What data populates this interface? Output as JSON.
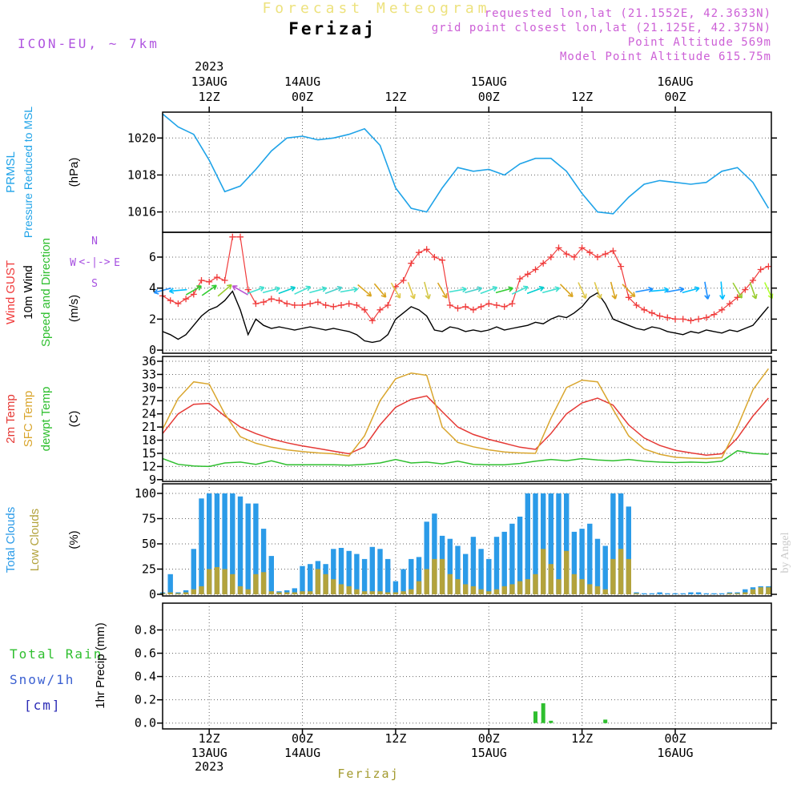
{
  "header": {
    "title": "Forecast Meteogram",
    "title_color": "#EDE27E",
    "station": "Ferizaj",
    "station_color": "#000000",
    "model": "ICON-EU, ~ 7km",
    "model_color": "#B055E0",
    "meta_color": "#CC5FD6",
    "meta": [
      "requested lon,lat (21.1552E, 42.3633N)",
      "grid point closest lon,lat (21.125E, 42.375N)",
      "Point Altitude 569m",
      "Model Point Altitude 615.75m"
    ]
  },
  "footer": {
    "station": "Ferizaj",
    "color": "#A39A2E"
  },
  "watermark": {
    "text": "by Angel",
    "color": "#C9C9C9"
  },
  "chart_data": {
    "type": "meteogram",
    "x_axis": "hours from 13AUG 06Z, 1h grid, 78h span",
    "time_axis": {
      "year": "2023",
      "ticks": [
        {
          "h": 6,
          "date": "13AUG",
          "time": "12Z",
          "year_below": true
        },
        {
          "h": 18,
          "date": "14AUG",
          "time": "00Z"
        },
        {
          "h": 30,
          "time": "12Z"
        },
        {
          "h": 42,
          "date": "15AUG",
          "time": "00Z"
        },
        {
          "h": 54,
          "time": "12Z"
        },
        {
          "h": 66,
          "date": "16AUG",
          "time": "00Z"
        }
      ]
    },
    "panels": [
      {
        "id": "pressure",
        "ylim": [
          1014.9,
          1021.4
        ],
        "yticks": [
          [
            1016,
            "1016"
          ],
          [
            1018,
            "1018"
          ],
          [
            1020,
            "1020"
          ]
        ],
        "left_labels": [
          {
            "text": "PRMSL",
            "color": "#1FA3E8"
          },
          {
            "text": "Pressure Reduced to MSL",
            "color": "#1FA3E8"
          },
          {
            "text": "(hPa)",
            "color": "#000000"
          }
        ],
        "series": [
          {
            "name": "PRMSL",
            "color": "#1FA3E8",
            "width": 1.6,
            "step": 2,
            "values": [
              1021.3,
              1020.6,
              1020.2,
              1018.8,
              1017.1,
              1017.4,
              1018.3,
              1019.3,
              1020.0,
              1020.1,
              1019.9,
              1020.0,
              1020.2,
              1020.5,
              1019.6,
              1017.3,
              1016.2,
              1016.0,
              1017.3,
              1018.4,
              1018.2,
              1018.3,
              1018.0,
              1018.6,
              1018.9,
              1018.9,
              1018.2,
              1017.0,
              1016.0,
              1015.9,
              1016.8,
              1017.5,
              1017.7,
              1017.6,
              1017.5,
              1017.6,
              1018.2,
              1018.4,
              1017.6,
              1016.2
            ]
          }
        ]
      },
      {
        "id": "wind",
        "ylim": [
          -0.2,
          7.6
        ],
        "yticks": [
          [
            0,
            "0"
          ],
          [
            2,
            "2"
          ],
          [
            4,
            "4"
          ],
          [
            6,
            "6"
          ]
        ],
        "left_labels": [
          {
            "text": "Wind GUST",
            "color": "#F03B3B"
          },
          {
            "text": "10m Wind",
            "color": "#000000"
          },
          {
            "text": "Speed and Direction",
            "color": "#2FBF2F"
          },
          {
            "text": "(m/s)",
            "color": "#000000"
          }
        ],
        "compass": {
          "n": "N",
          "s": "S",
          "w": "W",
          "e": "E",
          "arrows": "<-|->",
          "color": "#A64FE0"
        },
        "series": [
          {
            "name": "Wind GUST",
            "color": "#F03B3B",
            "width": 1.2,
            "step": 1,
            "marker": "plus",
            "values": [
              3.5,
              3.2,
              3.0,
              3.3,
              3.6,
              4.5,
              4.4,
              4.7,
              4.5,
              7.3,
              7.3,
              3.9,
              3.0,
              3.1,
              3.3,
              3.2,
              3.0,
              2.9,
              2.9,
              3.0,
              3.1,
              2.9,
              2.8,
              2.9,
              3.0,
              2.9,
              2.6,
              1.9,
              2.6,
              2.9,
              4.1,
              4.5,
              5.6,
              6.3,
              6.5,
              6.0,
              5.8,
              2.9,
              2.7,
              2.8,
              2.6,
              2.8,
              3.0,
              2.9,
              2.8,
              3.0,
              4.6,
              4.9,
              5.2,
              5.6,
              6.0,
              6.6,
              6.2,
              6.0,
              6.6,
              6.3,
              6.0,
              6.2,
              6.4,
              5.4,
              3.4,
              2.9,
              2.6,
              2.4,
              2.2,
              2.1,
              2.0,
              2.0,
              1.9,
              2.0,
              2.1,
              2.3,
              2.6,
              3.0,
              3.4,
              3.9,
              4.5,
              5.2,
              5.4
            ]
          },
          {
            "name": "10m Wind",
            "color": "#000000",
            "width": 1.4,
            "step": 1,
            "values": [
              1.2,
              1.0,
              0.7,
              1.0,
              1.6,
              2.2,
              2.6,
              2.8,
              3.2,
              3.8,
              2.6,
              1.0,
              2.0,
              1.6,
              1.4,
              1.5,
              1.4,
              1.3,
              1.4,
              1.5,
              1.4,
              1.3,
              1.4,
              1.3,
              1.2,
              1.0,
              0.6,
              0.5,
              0.6,
              1.0,
              2.0,
              2.4,
              2.8,
              2.6,
              2.2,
              1.3,
              1.2,
              1.5,
              1.4,
              1.2,
              1.3,
              1.2,
              1.3,
              1.5,
              1.3,
              1.4,
              1.5,
              1.6,
              1.8,
              1.7,
              2.0,
              2.2,
              2.1,
              2.4,
              2.8,
              3.4,
              3.7,
              3.0,
              2.0,
              1.8,
              1.6,
              1.4,
              1.3,
              1.5,
              1.4,
              1.2,
              1.1,
              1.0,
              1.2,
              1.1,
              1.3,
              1.2,
              1.1,
              1.3,
              1.2,
              1.4,
              1.6,
              2.2,
              2.8
            ]
          }
        ],
        "arrow_value": 3.85,
        "arrows": [
          [
            0,
            195,
            "#1E90FF"
          ],
          [
            2,
            185,
            "#00BFFF"
          ],
          [
            4,
            30,
            "#32CD32"
          ],
          [
            6,
            35,
            "#32CD32"
          ],
          [
            8,
            40,
            "#9ACD32"
          ],
          [
            10,
            150,
            "#BA55D3"
          ],
          [
            12,
            20,
            "#40E0D0"
          ],
          [
            14,
            15,
            "#40E0D0"
          ],
          [
            16,
            20,
            "#00CED1"
          ],
          [
            18,
            25,
            "#40E0D0"
          ],
          [
            20,
            15,
            "#40E0D0"
          ],
          [
            22,
            20,
            "#48D1CC"
          ],
          [
            24,
            10,
            "#40E0D0"
          ],
          [
            26,
            -40,
            "#DAA520"
          ],
          [
            28,
            -50,
            "#DAA520"
          ],
          [
            30,
            -60,
            "#E0C94B"
          ],
          [
            32,
            -70,
            "#E0C94B"
          ],
          [
            34,
            -75,
            "#D4C84A"
          ],
          [
            36,
            -60,
            "#DAA520"
          ],
          [
            38,
            10,
            "#40E0D0"
          ],
          [
            40,
            15,
            "#48D1CC"
          ],
          [
            42,
            20,
            "#40E0D0"
          ],
          [
            44,
            15,
            "#32CD32"
          ],
          [
            46,
            25,
            "#40E0D0"
          ],
          [
            48,
            20,
            "#00CED1"
          ],
          [
            50,
            15,
            "#40E0D0"
          ],
          [
            52,
            -45,
            "#DAA520"
          ],
          [
            54,
            -65,
            "#E0C94B"
          ],
          [
            56,
            -70,
            "#E0C94B"
          ],
          [
            58,
            -75,
            "#DAA520"
          ],
          [
            60,
            -45,
            "#DAA520"
          ],
          [
            62,
            10,
            "#1E90FF"
          ],
          [
            64,
            5,
            "#00BFFF"
          ],
          [
            66,
            10,
            "#1E90FF"
          ],
          [
            68,
            15,
            "#00BFFF"
          ],
          [
            70,
            -80,
            "#1E90FF"
          ],
          [
            72,
            -85,
            "#00BFFF"
          ],
          [
            74,
            -60,
            "#9ACD32"
          ],
          [
            76,
            -70,
            "#9ACD32"
          ],
          [
            78,
            -65,
            "#ADFF2F"
          ]
        ]
      },
      {
        "id": "temp",
        "ylim": [
          8.6,
          37.1
        ],
        "yticks": [
          [
            9,
            "9"
          ],
          [
            12,
            "12"
          ],
          [
            15,
            "15"
          ],
          [
            18,
            "18"
          ],
          [
            21,
            "21"
          ],
          [
            24,
            "24"
          ],
          [
            27,
            "27"
          ],
          [
            30,
            "30"
          ],
          [
            33,
            "33"
          ],
          [
            36,
            "36"
          ]
        ],
        "left_labels": [
          {
            "text": "2m Temp",
            "color": "#E53935"
          },
          {
            "text": "SFC Temp",
            "color": "#D9A62E"
          },
          {
            "text": "dewpt Temp",
            "color": "#2FBF2F"
          },
          {
            "text": "(C)",
            "color": "#000000"
          }
        ],
        "series": [
          {
            "name": "2m Temp",
            "color": "#E53935",
            "width": 1.5,
            "step": 2,
            "values": [
              19.5,
              24.0,
              26.2,
              26.4,
              23.5,
              21.0,
              19.5,
              18.3,
              17.4,
              16.7,
              16.1,
              15.5,
              14.9,
              16.5,
              21.5,
              25.5,
              27.3,
              28.1,
              24.5,
              21.0,
              19.3,
              18.2,
              17.3,
              16.4,
              15.9,
              19.5,
              24.0,
              26.5,
              27.6,
              26.0,
              21.5,
              18.5,
              16.8,
              15.7,
              15.1,
              14.6,
              14.9,
              18.5,
              23.5,
              27.6
            ]
          },
          {
            "name": "SFC Temp",
            "color": "#D9A62E",
            "width": 1.5,
            "step": 2,
            "values": [
              20.5,
              27.5,
              31.3,
              30.8,
              24.0,
              18.8,
              17.3,
              16.4,
              15.8,
              15.4,
              15.1,
              14.9,
              14.4,
              19.0,
              27.0,
              32.0,
              33.3,
              32.8,
              21.0,
              17.5,
              16.5,
              15.8,
              15.3,
              15.1,
              15.0,
              23.0,
              30.0,
              31.7,
              31.3,
              25.0,
              19.0,
              16.0,
              14.8,
              14.1,
              13.9,
              13.8,
              14.0,
              21.0,
              29.5,
              34.3
            ]
          },
          {
            "name": "dewpt Temp",
            "color": "#2FBF2F",
            "width": 1.5,
            "step": 2,
            "values": [
              13.8,
              12.5,
              12.1,
              12.0,
              12.8,
              13.0,
              12.5,
              13.3,
              12.4,
              12.4,
              12.4,
              12.4,
              12.3,
              12.5,
              12.8,
              13.6,
              12.8,
              13.0,
              12.6,
              13.2,
              12.5,
              12.4,
              12.4,
              12.7,
              13.2,
              13.6,
              13.3,
              13.8,
              13.5,
              13.3,
              13.6,
              13.2,
              13.0,
              12.9,
              13.0,
              12.9,
              13.2,
              15.6,
              15.0,
              14.8
            ]
          }
        ]
      },
      {
        "id": "clouds",
        "ylim": [
          -1.6,
          109.5
        ],
        "yticks": [
          [
            0,
            "0"
          ],
          [
            25,
            "25"
          ],
          [
            50,
            "50"
          ],
          [
            75,
            "75"
          ],
          [
            100,
            "100"
          ]
        ],
        "left_labels": [
          {
            "text": "Total Clouds",
            "color": "#2B9BE8"
          },
          {
            "text": "Low Clouds",
            "color": "#B3A33C"
          },
          {
            "text": "(%)",
            "color": "#000000"
          }
        ],
        "bars": [
          {
            "name": "Total Clouds",
            "color": "#2B9BE8",
            "values": [
              2,
              20,
              2,
              4,
              45,
              95,
              100,
              100,
              100,
              100,
              97,
              90,
              90,
              65,
              38,
              3,
              4,
              6,
              28,
              30,
              33,
              30,
              45,
              46,
              43,
              40,
              35,
              47,
              45,
              35,
              13,
              25,
              35,
              37,
              72,
              80,
              58,
              55,
              48,
              40,
              57,
              45,
              35,
              57,
              62,
              70,
              77,
              100,
              100,
              100,
              100,
              100,
              100,
              62,
              65,
              70,
              55,
              48,
              100,
              100,
              87,
              2,
              1,
              1,
              2,
              1,
              1,
              1,
              2,
              2,
              1,
              1,
              1,
              2,
              2,
              5,
              7,
              8,
              8
            ]
          },
          {
            "name": "Low Clouds",
            "color": "#B3A33C",
            "values": [
              1,
              2,
              1,
              2,
              5,
              8,
              25,
              27,
              25,
              20,
              8,
              5,
              20,
              22,
              3,
              2,
              2,
              2,
              3,
              3,
              25,
              20,
              15,
              10,
              8,
              5,
              3,
              3,
              3,
              2,
              2,
              3,
              5,
              13,
              25,
              35,
              35,
              20,
              15,
              10,
              8,
              5,
              3,
              5,
              8,
              10,
              13,
              15,
              20,
              45,
              30,
              15,
              43,
              20,
              15,
              10,
              8,
              5,
              35,
              45,
              35,
              1,
              0,
              0,
              0,
              0,
              0,
              0,
              0,
              0,
              0,
              0,
              0,
              1,
              1,
              2,
              5,
              7,
              7
            ]
          }
        ]
      },
      {
        "id": "precip",
        "ylim": [
          -0.05,
          1.03
        ],
        "yticks": [
          [
            0,
            "0.0"
          ],
          [
            0.2,
            "0.2"
          ],
          [
            0.4,
            "0.4"
          ],
          [
            0.6,
            "0.6"
          ],
          [
            0.8,
            "0.8"
          ]
        ],
        "left_labels": [
          {
            "text": "Total  Rain",
            "color": "#2FBF2F"
          },
          {
            "text": "Snow/1h",
            "color": "#3A5FD1"
          },
          {
            "text": "[cm]",
            "color": "#2A2AB5"
          },
          {
            "text": "1hr Precip (mm)",
            "color": "#000000"
          }
        ],
        "rain_color": "#2FBF2F",
        "rain_events": [
          [
            48,
            0.1
          ],
          [
            49,
            0.17
          ],
          [
            50,
            0.02
          ],
          [
            57,
            0.03
          ]
        ]
      }
    ]
  }
}
